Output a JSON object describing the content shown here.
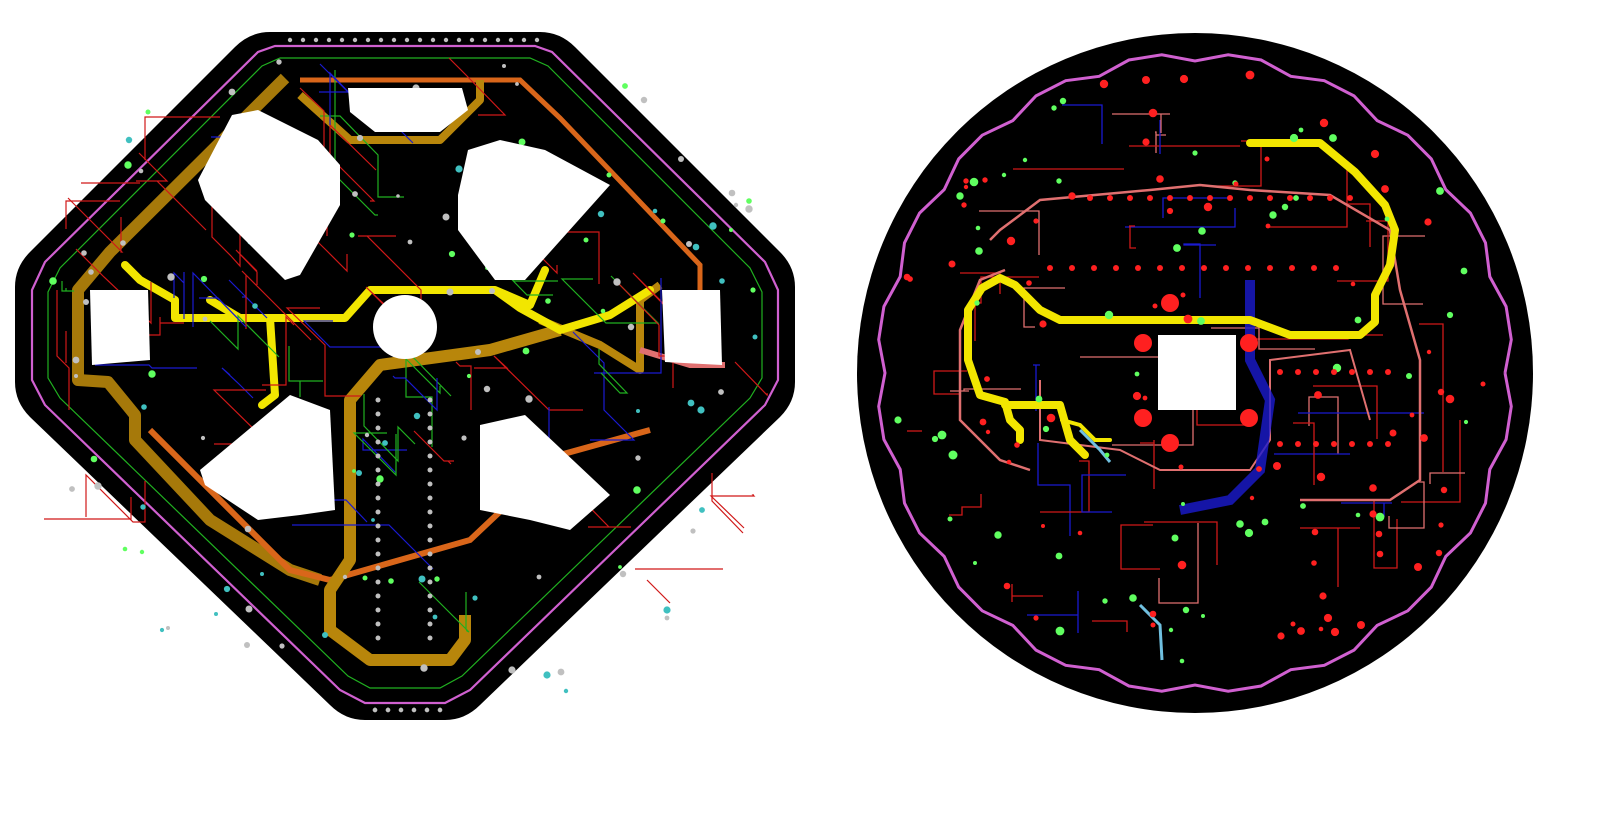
{
  "scene": {
    "background": "#ffffff",
    "objects": [
      {
        "id": "octagon-pcb",
        "shape": "octagon",
        "board_color": "#000000"
      },
      {
        "id": "round-pcb",
        "shape": "circle",
        "board_color": "#000000"
      }
    ]
  },
  "palette": {
    "board": "#000000",
    "cutout": "#ffffff",
    "power_trace": "#f2e600",
    "bronze_trace": "#b8860b",
    "orange_trace": "#d9661a",
    "red_trace": "#d01818",
    "salmon_trace": "#e07070",
    "blue_trace": "#1a1ad0",
    "green_trace": "#20b020",
    "magenta_trace": "#d060d0",
    "pad_red": "#ff2020",
    "pad_green": "#60ff60",
    "pad_cyan": "#40c0c0",
    "pad_grey": "#c0c0c0"
  }
}
